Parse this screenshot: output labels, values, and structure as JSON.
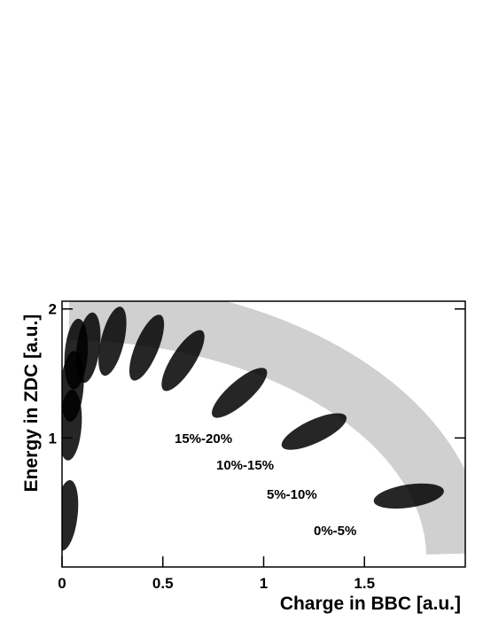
{
  "chart_data": {
    "type": "scatter",
    "x_label": "Charge in BBC [a.u.]",
    "y_label": "Energy in ZDC [a.u.]",
    "x": [
      0.02,
      0.04,
      0.05,
      0.07,
      0.13,
      0.25,
      0.42,
      0.6,
      0.88,
      1.25,
      1.72
    ],
    "values": [
      0.4,
      1.1,
      1.4,
      1.65,
      1.7,
      1.75,
      1.7,
      1.6,
      1.35,
      1.05,
      0.55
    ],
    "color": "#000000",
    "xlim": [
      0,
      2
    ],
    "ylim": [
      0,
      2.06
    ],
    "xticks": [
      0,
      0.5,
      1,
      1.5
    ],
    "yticks": [
      1,
      2
    ],
    "annotations": [
      "15%-20%",
      "10%-15%",
      "5%-10%",
      "0%-5%"
    ]
  }
}
